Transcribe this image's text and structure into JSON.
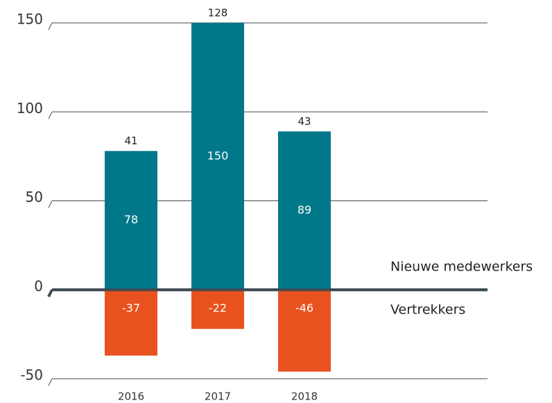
{
  "chart_data": {
    "type": "bar",
    "categories": [
      "2016",
      "2017",
      "2018"
    ],
    "series": [
      {
        "name": "Nieuwe medewerkers",
        "color": "#00788a",
        "values": [
          78,
          150,
          89
        ]
      },
      {
        "name": "Vertrekkers",
        "color": "#e8521e",
        "values": [
          -37,
          -22,
          -46
        ]
      }
    ],
    "net_values": [
      41,
      128,
      43
    ],
    "ylim": [
      -50,
      150
    ],
    "yticks": [
      -50,
      0,
      50,
      100,
      150
    ],
    "grid": true
  }
}
